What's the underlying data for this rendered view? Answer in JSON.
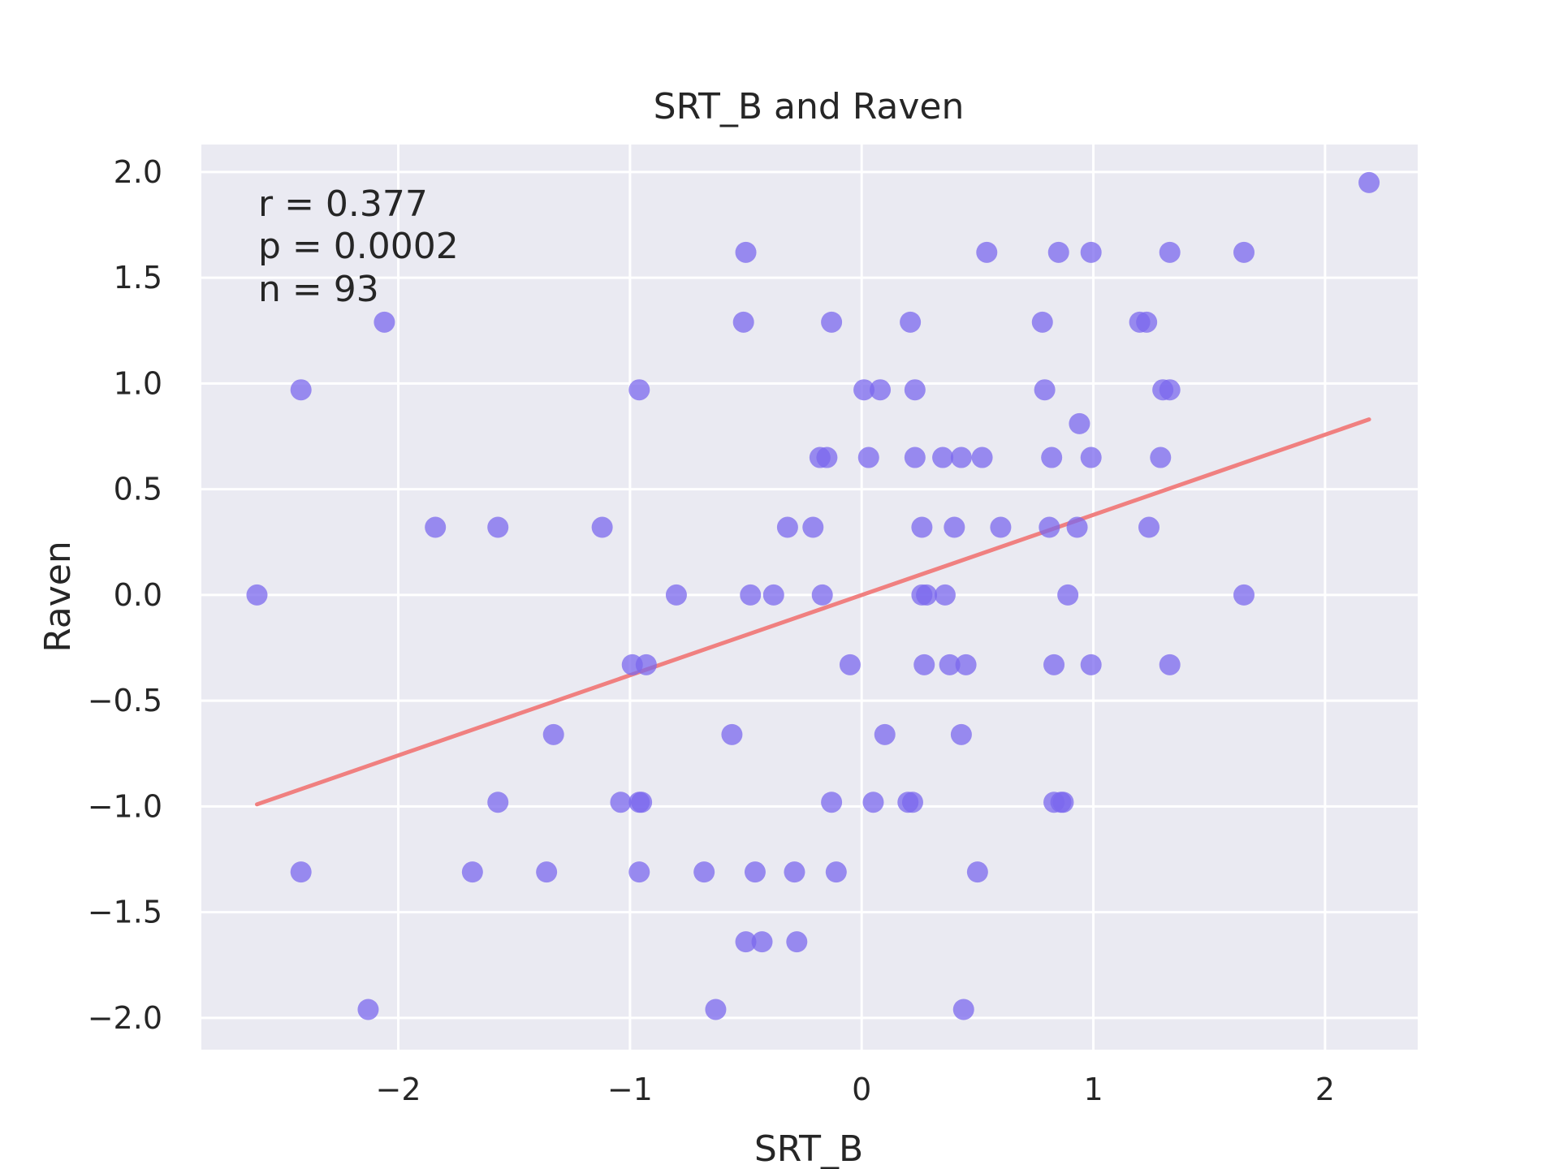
{
  "chart_data": {
    "type": "scatter",
    "title": "SRT_B and Raven",
    "xlabel": "SRT_B",
    "ylabel": "Raven",
    "xlim": [
      -2.85,
      2.4
    ],
    "ylim": [
      -2.15,
      2.13
    ],
    "xticks": [
      -2,
      -1,
      0,
      1,
      2
    ],
    "xtick_labels": [
      "−2",
      "−1",
      "0",
      "1",
      "2"
    ],
    "yticks": [
      2.0,
      1.5,
      1.0,
      0.5,
      0.0,
      -0.5,
      -1.0,
      -1.5,
      -2.0
    ],
    "ytick_labels": [
      "2.0",
      "1.5",
      "1.0",
      "0.5",
      "0.0",
      "−0.5",
      "−1.0",
      "−1.5",
      "−2.0"
    ],
    "grid": true,
    "annotations": [
      "r = 0.377",
      "p = 0.0002",
      "n = 93"
    ],
    "point_color": "#7b68ee",
    "line_color": "#f08080",
    "plot_background": "#eaeaf2",
    "fit_line": {
      "x": [
        -2.61,
        2.19
      ],
      "y": [
        -0.99,
        0.83
      ]
    },
    "points": [
      [
        2.19,
        1.95
      ],
      [
        -0.5,
        1.62
      ],
      [
        0.54,
        1.62
      ],
      [
        0.85,
        1.62
      ],
      [
        0.99,
        1.62
      ],
      [
        1.33,
        1.62
      ],
      [
        1.65,
        1.62
      ],
      [
        -2.06,
        1.29
      ],
      [
        -0.51,
        1.29
      ],
      [
        -0.13,
        1.29
      ],
      [
        0.21,
        1.29
      ],
      [
        0.78,
        1.29
      ],
      [
        1.2,
        1.29
      ],
      [
        1.23,
        1.29
      ],
      [
        -2.42,
        0.97
      ],
      [
        -0.96,
        0.97
      ],
      [
        0.01,
        0.97
      ],
      [
        0.08,
        0.97
      ],
      [
        0.23,
        0.97
      ],
      [
        0.79,
        0.97
      ],
      [
        1.3,
        0.97
      ],
      [
        1.33,
        0.97
      ],
      [
        0.94,
        0.81
      ],
      [
        -0.18,
        0.65
      ],
      [
        -0.15,
        0.65
      ],
      [
        0.03,
        0.65
      ],
      [
        0.23,
        0.65
      ],
      [
        0.35,
        0.65
      ],
      [
        0.43,
        0.65
      ],
      [
        0.52,
        0.65
      ],
      [
        0.82,
        0.65
      ],
      [
        0.99,
        0.65
      ],
      [
        1.29,
        0.65
      ],
      [
        -1.84,
        0.32
      ],
      [
        -1.57,
        0.32
      ],
      [
        -1.12,
        0.32
      ],
      [
        -0.32,
        0.32
      ],
      [
        -0.21,
        0.32
      ],
      [
        0.26,
        0.32
      ],
      [
        0.4,
        0.32
      ],
      [
        0.6,
        0.32
      ],
      [
        0.81,
        0.32
      ],
      [
        0.93,
        0.32
      ],
      [
        1.24,
        0.32
      ],
      [
        -2.61,
        0.0
      ],
      [
        -0.8,
        0.0
      ],
      [
        -0.48,
        0.0
      ],
      [
        -0.38,
        0.0
      ],
      [
        -0.17,
        0.0
      ],
      [
        0.26,
        0.0
      ],
      [
        0.28,
        0.0
      ],
      [
        0.36,
        0.0
      ],
      [
        0.89,
        0.0
      ],
      [
        1.65,
        0.0
      ],
      [
        -0.99,
        -0.33
      ],
      [
        -0.93,
        -0.33
      ],
      [
        -0.05,
        -0.33
      ],
      [
        0.27,
        -0.33
      ],
      [
        0.38,
        -0.33
      ],
      [
        0.45,
        -0.33
      ],
      [
        0.83,
        -0.33
      ],
      [
        0.99,
        -0.33
      ],
      [
        1.33,
        -0.33
      ],
      [
        -1.33,
        -0.66
      ],
      [
        -0.56,
        -0.66
      ],
      [
        0.1,
        -0.66
      ],
      [
        0.43,
        -0.66
      ],
      [
        -1.57,
        -0.98
      ],
      [
        -1.04,
        -0.98
      ],
      [
        -0.96,
        -0.98
      ],
      [
        -0.95,
        -0.98
      ],
      [
        -0.13,
        -0.98
      ],
      [
        0.05,
        -0.98
      ],
      [
        0.2,
        -0.98
      ],
      [
        0.22,
        -0.98
      ],
      [
        0.83,
        -0.98
      ],
      [
        0.86,
        -0.98
      ],
      [
        0.87,
        -0.98
      ],
      [
        -2.42,
        -1.31
      ],
      [
        -1.68,
        -1.31
      ],
      [
        -1.36,
        -1.31
      ],
      [
        -0.96,
        -1.31
      ],
      [
        -0.68,
        -1.31
      ],
      [
        -0.46,
        -1.31
      ],
      [
        -0.29,
        -1.31
      ],
      [
        -0.11,
        -1.31
      ],
      [
        0.5,
        -1.31
      ],
      [
        -0.5,
        -1.64
      ],
      [
        -0.43,
        -1.64
      ],
      [
        -0.28,
        -1.64
      ],
      [
        -2.13,
        -1.96
      ],
      [
        -0.63,
        -1.96
      ],
      [
        0.44,
        -1.96
      ]
    ]
  }
}
